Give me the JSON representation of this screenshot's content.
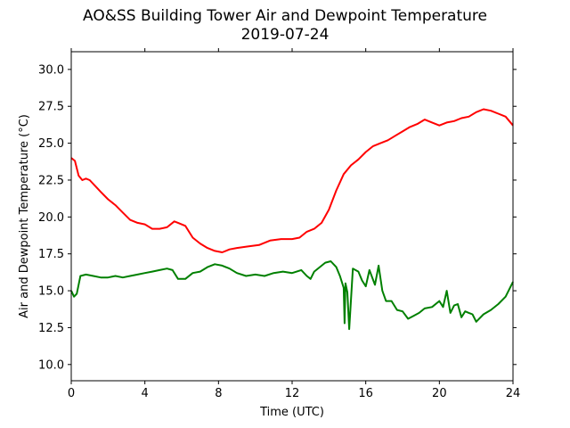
{
  "chart_data": {
    "type": "line",
    "title": "AO&SS Building Tower Air and Dewpoint Temperature",
    "subtitle": "2019-07-24",
    "xlabel": "Time (UTC)",
    "ylabel": "Air and Dewpoint Temperature (°C)",
    "xlim": [
      0,
      24
    ],
    "ylim": [
      8.9,
      31.2
    ],
    "xticks": [
      0,
      4,
      8,
      12,
      16,
      20,
      24
    ],
    "yticks": [
      "10.0",
      "12.5",
      "15.0",
      "17.5",
      "20.0",
      "22.5",
      "25.0",
      "27.5",
      "30.0"
    ],
    "grid": false,
    "legend": "none",
    "series": [
      {
        "color": "#ff0000",
        "x": [
          0,
          0.2,
          0.4,
          0.6,
          0.8,
          1.0,
          1.3,
          1.6,
          2.0,
          2.4,
          2.8,
          3.2,
          3.6,
          4.0,
          4.4,
          4.8,
          5.2,
          5.6,
          5.8,
          6.2,
          6.6,
          7.0,
          7.4,
          7.8,
          8.2,
          8.6,
          9.0,
          9.6,
          10.2,
          10.8,
          11.4,
          12.0,
          12.4,
          12.8,
          13.2,
          13.6,
          14.0,
          14.4,
          14.8,
          15.2,
          15.6,
          16.0,
          16.4,
          16.8,
          17.2,
          17.6,
          18.0,
          18.4,
          18.8,
          19.2,
          19.6,
          20.0,
          20.4,
          20.8,
          21.2,
          21.6,
          22.0,
          22.4,
          22.8,
          23.2,
          23.6,
          24.0
        ],
        "y": [
          24.0,
          23.8,
          22.8,
          22.5,
          22.6,
          22.5,
          22.1,
          21.7,
          21.2,
          20.8,
          20.3,
          19.8,
          19.6,
          19.5,
          19.2,
          19.2,
          19.3,
          19.7,
          19.6,
          19.4,
          18.6,
          18.2,
          17.9,
          17.7,
          17.6,
          17.8,
          17.9,
          18.0,
          18.1,
          18.4,
          18.5,
          18.5,
          18.6,
          19.0,
          19.2,
          19.6,
          20.5,
          21.8,
          22.9,
          23.5,
          23.9,
          24.4,
          24.8,
          25.0,
          25.2,
          25.5,
          25.8,
          26.1,
          26.3,
          26.6,
          26.4,
          26.2,
          26.4,
          26.5,
          26.7,
          26.8,
          27.1,
          27.3,
          27.2,
          27.0,
          26.8,
          26.2
        ]
      },
      {
        "color": "#008000",
        "x": [
          0,
          0.15,
          0.3,
          0.5,
          0.8,
          1.2,
          1.6,
          2.0,
          2.4,
          2.8,
          3.2,
          3.6,
          4.0,
          4.4,
          4.8,
          5.2,
          5.5,
          5.8,
          6.2,
          6.6,
          7.0,
          7.4,
          7.8,
          8.2,
          8.6,
          9.0,
          9.5,
          10.0,
          10.5,
          11.0,
          11.5,
          12.0,
          12.5,
          12.8,
          13.0,
          13.2,
          13.5,
          13.8,
          14.1,
          14.4,
          14.6,
          14.8,
          14.85,
          14.9,
          15.0,
          15.1,
          15.3,
          15.6,
          15.8,
          16.0,
          16.2,
          16.5,
          16.7,
          16.9,
          17.1,
          17.4,
          17.7,
          18.0,
          18.3,
          18.6,
          18.9,
          19.2,
          19.6,
          20.0,
          20.2,
          20.4,
          20.6,
          20.8,
          21.0,
          21.2,
          21.4,
          21.6,
          21.8,
          22.0,
          22.4,
          22.8,
          23.2,
          23.6,
          24.0
        ],
        "y": [
          15.0,
          14.6,
          14.8,
          16.0,
          16.1,
          16.0,
          15.9,
          15.9,
          16.0,
          15.9,
          16.0,
          16.1,
          16.2,
          16.3,
          16.4,
          16.5,
          16.4,
          15.8,
          15.8,
          16.2,
          16.3,
          16.6,
          16.8,
          16.7,
          16.5,
          16.2,
          16.0,
          16.1,
          16.0,
          16.2,
          16.3,
          16.2,
          16.4,
          16.0,
          15.8,
          16.3,
          16.6,
          16.9,
          17.0,
          16.6,
          16.0,
          15.2,
          12.8,
          15.5,
          14.9,
          12.4,
          16.5,
          16.3,
          15.7,
          15.3,
          16.4,
          15.4,
          16.7,
          15.0,
          14.3,
          14.3,
          13.7,
          13.6,
          13.1,
          13.3,
          13.5,
          13.8,
          13.9,
          14.3,
          13.9,
          15.0,
          13.5,
          14.0,
          14.1,
          13.2,
          13.6,
          13.5,
          13.4,
          12.9,
          13.4,
          13.7,
          14.1,
          14.6,
          15.6
        ]
      }
    ]
  }
}
